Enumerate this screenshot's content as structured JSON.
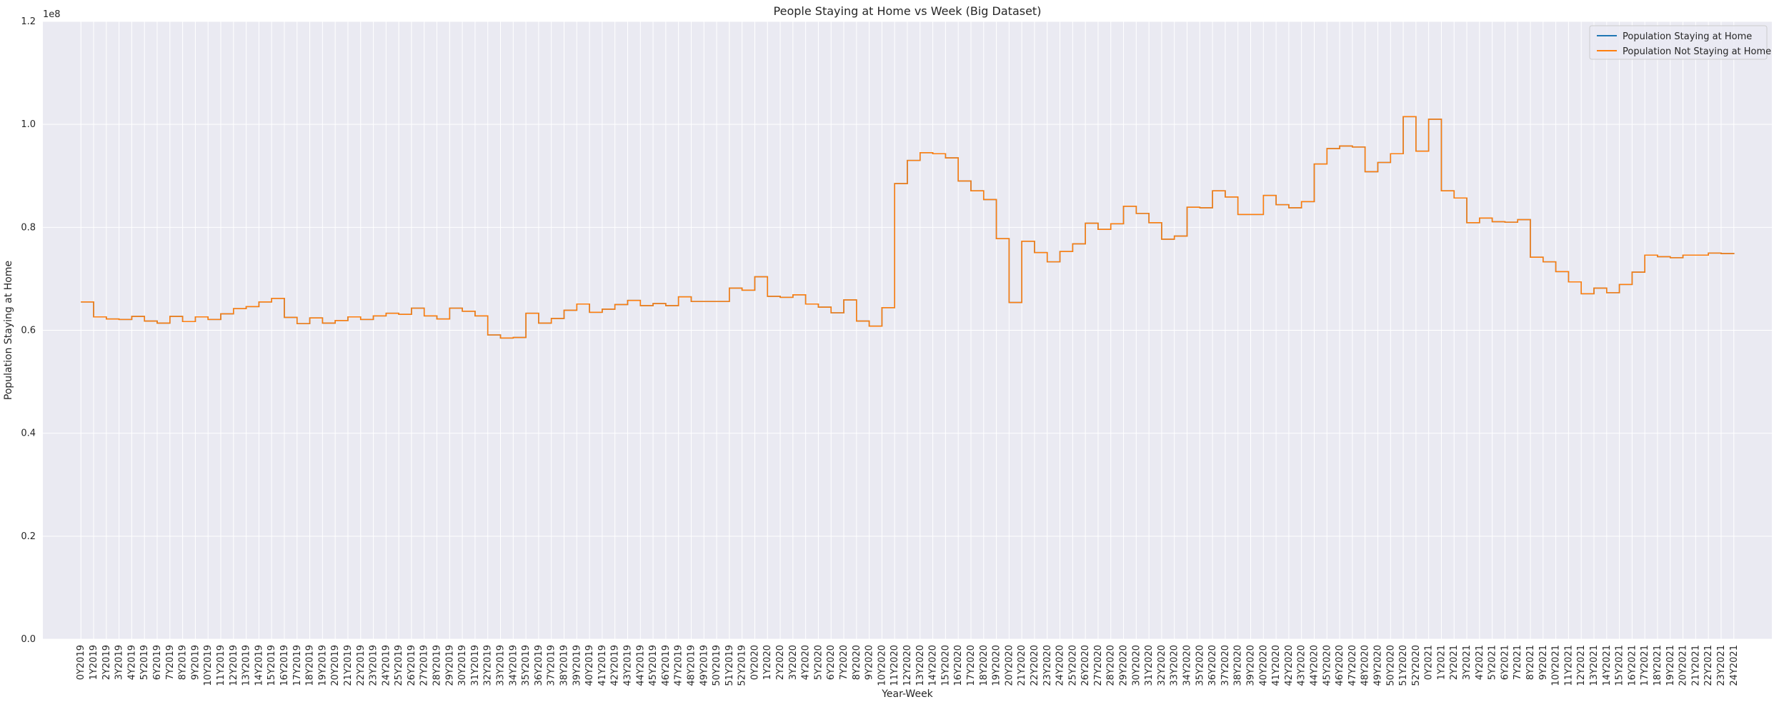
{
  "chart_data": {
    "type": "line",
    "title": "People Staying at Home vs Week (Big Dataset)",
    "xlabel": "Year-Week",
    "ylabel": "Population Staying at Home",
    "y_scale_label": "1e8",
    "ylim": [
      0,
      1.2
    ],
    "yticks": [
      0.0,
      0.2,
      0.4,
      0.6,
      0.8,
      1.0,
      1.2
    ],
    "ytick_labels": [
      "0.0",
      "0.2",
      "0.4",
      "0.6",
      "0.8",
      "1.0",
      "1.2"
    ],
    "grid": true,
    "legend_position": "top-right",
    "categories": [
      "0Y2019",
      "1Y2019",
      "2Y2019",
      "3Y2019",
      "4Y2019",
      "5Y2019",
      "6Y2019",
      "7Y2019",
      "8Y2019",
      "9Y2019",
      "10Y2019",
      "11Y2019",
      "12Y2019",
      "13Y2019",
      "14Y2019",
      "15Y2019",
      "16Y2019",
      "17Y2019",
      "18Y2019",
      "19Y2019",
      "20Y2019",
      "21Y2019",
      "22Y2019",
      "23Y2019",
      "24Y2019",
      "25Y2019",
      "26Y2019",
      "27Y2019",
      "28Y2019",
      "29Y2019",
      "30Y2019",
      "31Y2019",
      "32Y2019",
      "33Y2019",
      "34Y2019",
      "35Y2019",
      "36Y2019",
      "37Y2019",
      "38Y2019",
      "39Y2019",
      "40Y2019",
      "41Y2019",
      "42Y2019",
      "43Y2019",
      "44Y2019",
      "45Y2019",
      "46Y2019",
      "47Y2019",
      "48Y2019",
      "49Y2019",
      "50Y2019",
      "51Y2019",
      "52Y2019",
      "0Y2020",
      "1Y2020",
      "2Y2020",
      "3Y2020",
      "4Y2020",
      "5Y2020",
      "6Y2020",
      "7Y2020",
      "8Y2020",
      "9Y2020",
      "10Y2020",
      "11Y2020",
      "12Y2020",
      "13Y2020",
      "14Y2020",
      "15Y2020",
      "16Y2020",
      "17Y2020",
      "18Y2020",
      "19Y2020",
      "20Y2020",
      "21Y2020",
      "22Y2020",
      "23Y2020",
      "24Y2020",
      "25Y2020",
      "26Y2020",
      "27Y2020",
      "28Y2020",
      "29Y2020",
      "30Y2020",
      "31Y2020",
      "32Y2020",
      "33Y2020",
      "34Y2020",
      "35Y2020",
      "36Y2020",
      "37Y2020",
      "38Y2020",
      "39Y2020",
      "40Y2020",
      "41Y2020",
      "42Y2020",
      "43Y2020",
      "44Y2020",
      "45Y2020",
      "46Y2020",
      "47Y2020",
      "48Y2020",
      "49Y2020",
      "50Y2020",
      "51Y2020",
      "52Y2020",
      "0Y2021",
      "1Y2021",
      "2Y2021",
      "3Y2021",
      "4Y2021",
      "5Y2021",
      "6Y2021",
      "7Y2021",
      "8Y2021",
      "9Y2021",
      "10Y2021",
      "11Y2021",
      "12Y2021",
      "13Y2021",
      "14Y2021",
      "15Y2021",
      "16Y2021",
      "17Y2021",
      "18Y2021",
      "19Y2021",
      "20Y2021",
      "21Y2021",
      "22Y2021",
      "23Y2021",
      "24Y2021"
    ],
    "series": [
      {
        "name": "Population Staying at Home",
        "color": "#1f77b4",
        "values": [
          0.655,
          0.626,
          0.622,
          0.621,
          0.627,
          0.618,
          0.614,
          0.627,
          0.617,
          0.626,
          0.621,
          0.632,
          0.642,
          0.646,
          0.655,
          0.662,
          0.625,
          0.613,
          0.624,
          0.614,
          0.619,
          0.626,
          0.621,
          0.628,
          0.633,
          0.631,
          0.643,
          0.628,
          0.622,
          0.643,
          0.637,
          0.628,
          0.591,
          0.585,
          0.586,
          0.633,
          0.614,
          0.623,
          0.639,
          0.651,
          0.635,
          0.641,
          0.65,
          0.658,
          0.648,
          0.652,
          0.648,
          0.665,
          0.656,
          0.656,
          0.656,
          0.682,
          0.678,
          0.704,
          0.666,
          0.664,
          0.669,
          0.651,
          0.645,
          0.634,
          0.659,
          0.618,
          0.608,
          0.644,
          0.885,
          0.93,
          0.945,
          0.943,
          0.935,
          0.89,
          0.871,
          0.854,
          0.778,
          0.654,
          0.773,
          0.751,
          0.733,
          0.753,
          0.768,
          0.808,
          0.796,
          0.807,
          0.841,
          0.827,
          0.809,
          0.777,
          0.783,
          0.839,
          0.838,
          0.871,
          0.859,
          0.825,
          0.825,
          0.862,
          0.844,
          0.838,
          0.85,
          0.923,
          0.953,
          0.958,
          0.956,
          0.908,
          0.926,
          0.943,
          1.015,
          0.948,
          1.01,
          0.871,
          0.857,
          0.809,
          0.818,
          0.811,
          0.81,
          0.815,
          0.742,
          0.733,
          0.714,
          0.694,
          0.671,
          0.682,
          0.673,
          0.689,
          0.713,
          0.746,
          0.743,
          0.741,
          0.746,
          0.746,
          0.75,
          0.749,
          0.748
        ],
        "step": "post"
      },
      {
        "name": "Population Not Staying at Home",
        "color": "#ff7f0e",
        "values": [
          0.655,
          0.626,
          0.622,
          0.621,
          0.627,
          0.618,
          0.614,
          0.627,
          0.617,
          0.626,
          0.621,
          0.632,
          0.642,
          0.646,
          0.655,
          0.662,
          0.625,
          0.613,
          0.624,
          0.614,
          0.619,
          0.626,
          0.621,
          0.628,
          0.633,
          0.631,
          0.643,
          0.628,
          0.622,
          0.643,
          0.637,
          0.628,
          0.591,
          0.585,
          0.586,
          0.633,
          0.614,
          0.623,
          0.639,
          0.651,
          0.635,
          0.641,
          0.65,
          0.658,
          0.648,
          0.652,
          0.648,
          0.665,
          0.656,
          0.656,
          0.656,
          0.682,
          0.678,
          0.704,
          0.666,
          0.664,
          0.669,
          0.651,
          0.645,
          0.634,
          0.659,
          0.618,
          0.608,
          0.644,
          0.885,
          0.93,
          0.945,
          0.943,
          0.935,
          0.89,
          0.871,
          0.854,
          0.778,
          0.654,
          0.773,
          0.751,
          0.733,
          0.753,
          0.768,
          0.808,
          0.796,
          0.807,
          0.841,
          0.827,
          0.809,
          0.777,
          0.783,
          0.839,
          0.838,
          0.871,
          0.859,
          0.825,
          0.825,
          0.862,
          0.844,
          0.838,
          0.85,
          0.923,
          0.953,
          0.958,
          0.956,
          0.908,
          0.926,
          0.943,
          1.015,
          0.948,
          1.01,
          0.871,
          0.857,
          0.809,
          0.818,
          0.811,
          0.81,
          0.815,
          0.742,
          0.733,
          0.714,
          0.694,
          0.671,
          0.682,
          0.673,
          0.689,
          0.713,
          0.746,
          0.743,
          0.741,
          0.746,
          0.746,
          0.75,
          0.749,
          0.748
        ],
        "step": "post"
      }
    ]
  }
}
